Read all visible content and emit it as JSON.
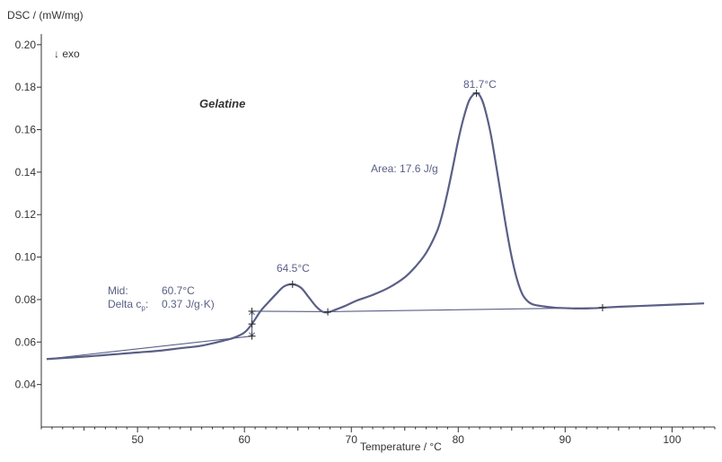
{
  "chart_data": {
    "type": "line",
    "title": "Gelatine",
    "ylabel": "DSC / (mW/mg)",
    "xlabel": "Temperature / °C",
    "exo_label": "↓ exo",
    "xlim": [
      41,
      104
    ],
    "ylim": [
      0.02,
      0.205
    ],
    "x_ticks": [
      50,
      60,
      70,
      80,
      90,
      100
    ],
    "y_ticks": [
      0.04,
      0.06,
      0.08,
      0.1,
      0.12,
      0.14,
      0.16,
      0.18,
      0.2
    ],
    "y_tick_labels": [
      "0.04",
      "0.06",
      "0.08",
      "0.10",
      "0.12",
      "0.14",
      "0.16",
      "0.18",
      "0.20"
    ],
    "grid": false,
    "colors": {
      "curve": "#5a5f86",
      "axis": "#333333",
      "annotation": "#5a5f86"
    },
    "series": [
      {
        "x": [
          41.5,
          44,
          46,
          48,
          50,
          52,
          54,
          56,
          58,
          59,
          60,
          60.7,
          61.5,
          62.2,
          63,
          63.7,
          64.5,
          65.3,
          66,
          66.7,
          67.3,
          67.8,
          68.5,
          69.5,
          70.5,
          72,
          73.5,
          75,
          76,
          77,
          78,
          78.5,
          79,
          79.5,
          80,
          80.5,
          81,
          81.4,
          81.7,
          82,
          82.4,
          83,
          83.5,
          84,
          84.5,
          85,
          85.5,
          86,
          86.5,
          87,
          88,
          89,
          90,
          91,
          92,
          93,
          93.5,
          95,
          97,
          99,
          101,
          103
        ],
        "y": [
          0.052,
          0.0528,
          0.0535,
          0.0543,
          0.0551,
          0.0559,
          0.0571,
          0.0583,
          0.0606,
          0.062,
          0.0645,
          0.0685,
          0.0745,
          0.0785,
          0.0828,
          0.0862,
          0.0872,
          0.0855,
          0.0812,
          0.0768,
          0.0743,
          0.074,
          0.0752,
          0.0772,
          0.0795,
          0.0822,
          0.0856,
          0.0905,
          0.0955,
          0.102,
          0.112,
          0.12,
          0.1305,
          0.1425,
          0.155,
          0.1655,
          0.1735,
          0.1765,
          0.1772,
          0.1762,
          0.1715,
          0.159,
          0.1445,
          0.129,
          0.1135,
          0.1,
          0.0895,
          0.0825,
          0.0792,
          0.0777,
          0.0768,
          0.0762,
          0.076,
          0.0758,
          0.0758,
          0.076,
          0.0762,
          0.0766,
          0.077,
          0.0774,
          0.0778,
          0.0782
        ]
      }
    ],
    "baselines": [
      {
        "x": [
          60.7,
          61.2,
          67.8,
          93.5
        ],
        "y": [
          0.0745,
          0.0745,
          0.0743,
          0.0762
        ]
      },
      {
        "x": [
          41.5,
          60.7
        ],
        "y": [
          0.052,
          0.0628
        ]
      }
    ],
    "markers": [
      {
        "x": 60.7,
        "y": 0.0685
      },
      {
        "x": 60.7,
        "y": 0.0745
      },
      {
        "x": 60.7,
        "y": 0.0628
      },
      {
        "x": 64.5,
        "y": 0.0872
      },
      {
        "x": 67.8,
        "y": 0.0742
      },
      {
        "x": 81.7,
        "y": 0.1772
      },
      {
        "x": 93.5,
        "y": 0.0762
      }
    ],
    "annotations": {
      "peak1": "64.5°C",
      "peak2": "81.7°C",
      "area": "Area: 17.6 J/g",
      "mid_label": "Mid:",
      "mid_value": "60.7°C",
      "delta_label_main": "Delta c",
      "delta_label_sub": "p",
      "delta_label_colon": ":",
      "delta_value": "0.37 J/g·K)"
    }
  }
}
